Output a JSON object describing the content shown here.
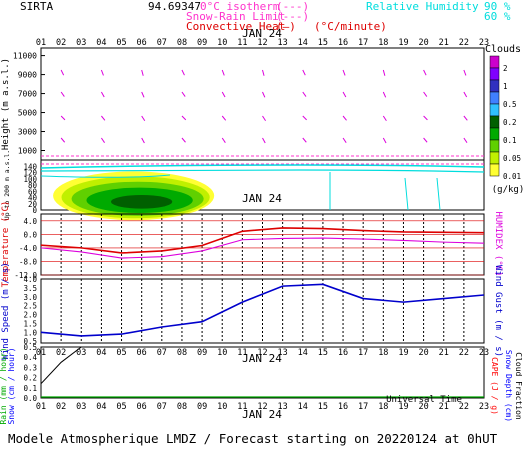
{
  "header": {
    "site": "SIRTA",
    "coords": "94.69347",
    "isotherm_label": "0°C isotherm",
    "snow_rain_label": "Snow-Rain Limit",
    "convective_label": "Convective Heat",
    "convective_unit": "(°C/minute)",
    "rh_label": "Relative Humidity",
    "rh_90": "90 %",
    "rh_60": "60 %"
  },
  "date_label": "JAN 24",
  "hours": [
    "01",
    "02",
    "03",
    "04",
    "05",
    "06",
    "07",
    "08",
    "09",
    "10",
    "11",
    "12",
    "13",
    "14",
    "15",
    "16",
    "17",
    "18",
    "19",
    "20",
    "21",
    "22",
    "23"
  ],
  "colors": {
    "isotherm": "#ff33cc",
    "snow_rain": "#ff33cc",
    "convective": "#dd0000",
    "humidity": "#00dddd",
    "temperature": "#dd0000",
    "humidex": "#dd00dd",
    "wind": "#0000cc",
    "rain": "#00aa00",
    "snow": "#0000ff",
    "cloud_fraction": "#000000",
    "cape": "#ff0000",
    "grid": "#000000"
  },
  "footer": {
    "universal_time": "Universal Time",
    "title": "Modele Atmospherique LMDZ / Forecast starting on 20220124 at 0hUT"
  },
  "chart_data": [
    {
      "type": "heatmap",
      "name": "clouds",
      "ylabel": "Height  (m a.s.l.)",
      "y_ticks_upper": [
        11000,
        9000,
        7000,
        5000,
        3000,
        1000
      ],
      "y_ticks_lower": [
        140,
        120,
        100,
        80,
        60,
        40,
        20,
        0
      ],
      "ylabel_lower": "Up to 200 m a.s.l.",
      "colorbar": {
        "title": "Clouds",
        "unit": "(g/kg)",
        "levels": [
          "2",
          "1",
          "0.5",
          "0.2",
          "0.1",
          "0.05",
          "0.01"
        ],
        "colors": [
          "#cc00cc",
          "#8000ff",
          "#3030c0",
          "#4080ff",
          "#30c0ff",
          "#006000",
          "#00aa00",
          "#60d000",
          "#c0f000",
          "#ffff33"
        ]
      },
      "low_cloud_blob": {
        "x_start": 1.6,
        "x_end": 9.6,
        "y_base_m": 0,
        "y_top_m": 130
      }
    },
    {
      "type": "line",
      "name": "temperature",
      "ylabel": "Temperature (°C)",
      "ylabel_right": "HUMIDEX (°C)",
      "y_ticks": [
        "4.0",
        "0.0",
        "-4.0",
        "-8.0",
        "-12.0"
      ],
      "ylim": [
        -12,
        6
      ],
      "x": [
        1,
        3,
        5,
        7,
        9,
        11,
        13,
        15,
        17,
        19,
        21,
        23
      ],
      "series": [
        {
          "name": "Temperature",
          "values": [
            -3.2,
            -4.0,
            -5.5,
            -4.9,
            -3.3,
            0.9,
            1.9,
            1.7,
            1.1,
            0.7,
            0.6,
            0.5
          ]
        },
        {
          "name": "HUMIDEX",
          "values": [
            -4.0,
            -5.2,
            -7.0,
            -6.6,
            -4.9,
            -1.6,
            -1.2,
            -1.1,
            -1.4,
            -1.8,
            -2.3,
            -2.6
          ]
        }
      ]
    },
    {
      "type": "line",
      "name": "wind",
      "ylabel": "Wind Speed (m / s)",
      "ylabel_right": "Wind Gust (m / s)",
      "y_ticks": [
        "4.0",
        "3.5",
        "3.0",
        "2.5",
        "2.0",
        "1.5",
        "1.0",
        "0.5"
      ],
      "ylim": [
        0.4,
        4.0
      ],
      "x": [
        1,
        3,
        5,
        7,
        9,
        11,
        13,
        15,
        17,
        19,
        21,
        23
      ],
      "series": [
        {
          "name": "Wind Speed",
          "values": [
            1.0,
            0.8,
            0.9,
            1.3,
            1.6,
            2.7,
            3.6,
            3.7,
            2.9,
            2.7,
            2.9,
            3.1
          ]
        }
      ]
    },
    {
      "type": "line",
      "name": "precipitation",
      "ylabel": "Rain (mm / hour)",
      "ylabel2": "Snow (cm / hour)",
      "ylabel_right": "Snow Depth (cm)",
      "ylabel_right2": "Cloud Fraction",
      "ylabel_right3": "CAPE (J / g)",
      "y_ticks": [
        "0.5",
        "0.4",
        "0.3",
        "0.2",
        "0.1",
        "0.0"
      ],
      "ylim": [
        0,
        0.5
      ],
      "x": [
        1,
        2,
        3,
        4,
        5,
        6,
        7,
        8,
        9,
        10,
        11,
        12,
        13,
        14,
        15,
        16,
        17,
        18,
        19,
        20,
        21,
        22,
        23
      ],
      "series": [
        {
          "name": "Cloud Fraction",
          "values": [
            0.14,
            0.35,
            0.5,
            0.5,
            0.5,
            0.5,
            0.5,
            0.5,
            0.5,
            0.5,
            0.5,
            0.5,
            0.5,
            0.5,
            0.5,
            0.5,
            0.5,
            0.5,
            0.5,
            0.5,
            0.5,
            0.5,
            0.5
          ]
        },
        {
          "name": "Rain",
          "values": [
            0,
            0,
            0,
            0,
            0,
            0,
            0,
            0,
            0,
            0,
            0,
            0,
            0,
            0,
            0,
            0,
            0,
            0,
            0,
            0,
            0,
            0,
            0
          ]
        }
      ]
    }
  ]
}
